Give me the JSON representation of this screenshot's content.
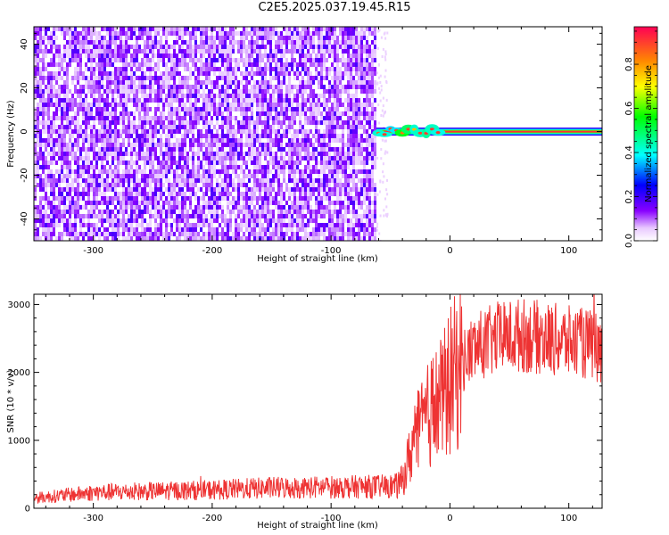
{
  "title": "C2E5.2025.037.19.45.R15",
  "chart_data": [
    {
      "type": "heatmap",
      "xlabel": "Height of straight line (km)",
      "ylabel": "Frequency (Hz)",
      "xlim": [
        -350,
        128
      ],
      "ylim": [
        -50,
        48
      ],
      "xticks": [
        -300,
        -200,
        -100,
        0,
        100
      ],
      "yticks": [
        -40,
        -20,
        0,
        20,
        40
      ],
      "noise_region_x": [
        -350,
        -62
      ],
      "signal_region_x": [
        -62,
        128
      ],
      "signal_frequency": 0,
      "colorbar": {
        "label": "Normalized spectral amplitude",
        "range": [
          0,
          0.97
        ],
        "ticks": [
          0.0,
          0.2,
          0.4,
          0.6,
          0.8
        ],
        "tick_labels": [
          "0.0",
          "0.2",
          "0.4",
          "0.6",
          "0.8"
        ]
      }
    },
    {
      "type": "line",
      "xlabel": "Height of straight line (km)",
      "ylabel": "SNR (10 * v/v)",
      "xlim": [
        -350,
        128
      ],
      "ylim": [
        0,
        3150
      ],
      "xticks": [
        -300,
        -200,
        -100,
        0,
        100
      ],
      "yticks": [
        0,
        1000,
        2000,
        3000
      ],
      "color": "#ee3333",
      "x": [
        -350,
        -300,
        -250,
        -200,
        -150,
        -100,
        -60,
        -45,
        -40,
        -35,
        -30,
        -25,
        -20,
        -15,
        -10,
        -5,
        0,
        10,
        20,
        40,
        60,
        80,
        100,
        120,
        128
      ],
      "y": [
        150,
        230,
        250,
        270,
        300,
        310,
        320,
        330,
        400,
        700,
        1000,
        1150,
        1300,
        1450,
        1550,
        1650,
        1850,
        2150,
        2350,
        2500,
        2550,
        2500,
        2450,
        2400,
        2300
      ]
    }
  ]
}
